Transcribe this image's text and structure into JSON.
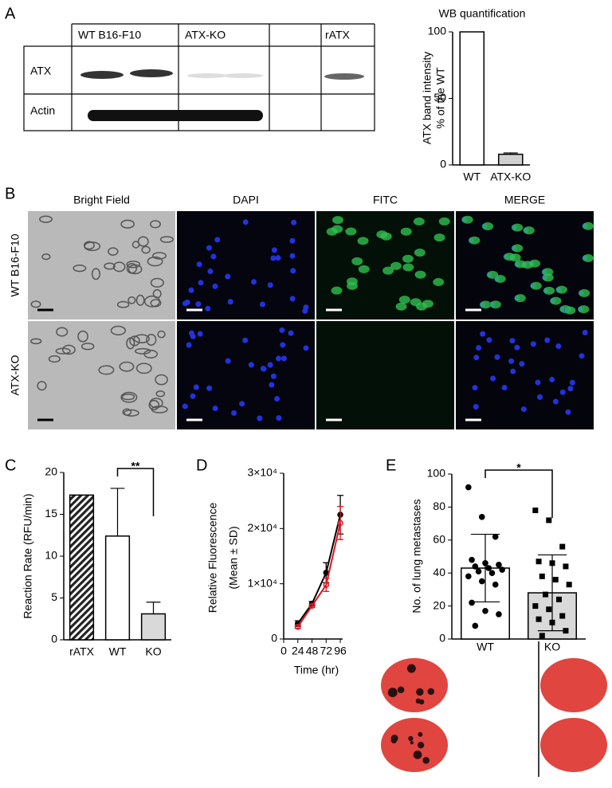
{
  "panel_labels": [
    "A",
    "B",
    "C",
    "D",
    "E"
  ],
  "blot": {
    "lanes": [
      "WT B16-F10",
      "ATX-KO",
      "rATX"
    ],
    "rows": [
      "ATX",
      "Actin"
    ]
  },
  "microscopy": {
    "columns": [
      "Bright Field",
      "DAPI",
      "FITC",
      "MERGE"
    ],
    "rows": [
      "WT B16-F10",
      "ATX-KO"
    ]
  },
  "chart_data": [
    {
      "type": "bar",
      "title": "WB quantification",
      "y_label": [
        "ATX band intensity",
        "% of the WT"
      ],
      "categories": [
        "WT",
        "ATX-KO"
      ],
      "values": [
        100,
        8
      ],
      "errors": [
        null,
        1
      ],
      "error_bars": "up",
      "colors": [
        "#ffffff",
        "#d0d0d0"
      ],
      "ylim": [
        0,
        100
      ],
      "yticks": [
        0,
        50,
        100
      ]
    },
    {
      "type": "bar",
      "y_label": [
        "Reaction Rate (RFU/min)"
      ],
      "categories": [
        "rATX",
        "WT",
        "KO"
      ],
      "values": [
        17.3,
        12.4,
        3.1
      ],
      "errors": [
        null,
        5.7,
        1.4
      ],
      "error_bars": "up",
      "colors": [
        "#333333",
        "#ffffff",
        "#d9d9d9"
      ],
      "hatched": [
        true,
        false,
        false
      ],
      "ylim": [
        0,
        20
      ],
      "yticks": [
        0,
        5,
        10,
        15,
        20
      ],
      "annotation": "**"
    },
    {
      "type": "line",
      "y_label": [
        "Relative Fluorescence",
        "(Mean ± SD)"
      ],
      "x_label": "Time (hr)",
      "x": [
        24,
        48,
        72,
        96
      ],
      "series": [
        {
          "color": "#000000",
          "values": [
            2800,
            6400,
            12000,
            22500
          ],
          "errors": [
            500,
            400,
            1800,
            3500
          ]
        },
        {
          "color": "#e0141e",
          "values": [
            2200,
            6000,
            9800,
            21000
          ],
          "errors": [
            300,
            300,
            1200,
            3000
          ]
        }
      ],
      "xlim": [
        0,
        100
      ],
      "xticks": [
        0,
        24,
        48,
        72,
        96
      ],
      "ylim": [
        0,
        30000
      ],
      "yticks": [
        {
          "value": 0,
          "label": "0"
        },
        {
          "value": 10000,
          "label": "1×10⁴"
        },
        {
          "value": 20000,
          "label": "2×10⁴"
        },
        {
          "value": 30000,
          "label": "3×10⁴"
        }
      ]
    },
    {
      "type": "bar",
      "y_label": [
        "No. of lung metastases"
      ],
      "categories": [
        "WT",
        "KO"
      ],
      "values": [
        43,
        28
      ],
      "errors": [
        20.5,
        23
      ],
      "error_bars": "both",
      "colors": [
        "#ffffff",
        "#d9d9d9"
      ],
      "markers": [
        "circle",
        "square"
      ],
      "points": [
        [
          92,
          74,
          62,
          48,
          46,
          45,
          44,
          43,
          42,
          41,
          40,
          38,
          35,
          33,
          22,
          17,
          15,
          8
        ],
        [
          78,
          72,
          56,
          47,
          46,
          44,
          38,
          36,
          33,
          27,
          24,
          20,
          18,
          14,
          12,
          10,
          5,
          2
        ]
      ],
      "ylim": [
        0,
        100
      ],
      "yticks": [
        0,
        20,
        40,
        60,
        80,
        100
      ],
      "annotation": "*"
    }
  ]
}
